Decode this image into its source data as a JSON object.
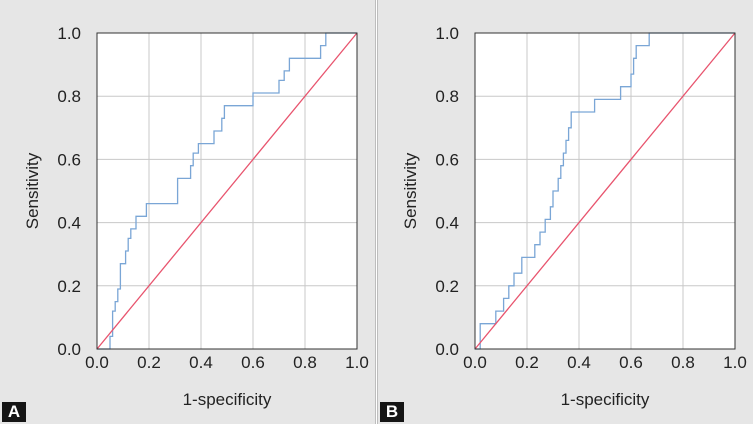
{
  "chart_data": [
    {
      "type": "line",
      "panel_label": "A",
      "xlabel": "1-specificity",
      "ylabel": "Sensitivity",
      "xlim": [
        0,
        1
      ],
      "ylim": [
        0,
        1
      ],
      "x_ticks": [
        "0.0",
        "0.2",
        "0.4",
        "0.6",
        "0.8",
        "1.0"
      ],
      "y_ticks": [
        "0.0",
        "0.2",
        "0.4",
        "0.6",
        "0.8",
        "1.0"
      ],
      "grid": true,
      "series": [
        {
          "color": "#7aa6d6",
          "step": true,
          "points": [
            [
              0,
              0
            ],
            [
              0.05,
              0
            ],
            [
              0.05,
              0.04
            ],
            [
              0.06,
              0.04
            ],
            [
              0.06,
              0.12
            ],
            [
              0.07,
              0.12
            ],
            [
              0.07,
              0.15
            ],
            [
              0.08,
              0.15
            ],
            [
              0.08,
              0.19
            ],
            [
              0.09,
              0.19
            ],
            [
              0.09,
              0.27
            ],
            [
              0.11,
              0.27
            ],
            [
              0.11,
              0.31
            ],
            [
              0.12,
              0.31
            ],
            [
              0.12,
              0.35
            ],
            [
              0.13,
              0.35
            ],
            [
              0.13,
              0.38
            ],
            [
              0.15,
              0.38
            ],
            [
              0.15,
              0.42
            ],
            [
              0.19,
              0.42
            ],
            [
              0.19,
              0.46
            ],
            [
              0.31,
              0.46
            ],
            [
              0.31,
              0.54
            ],
            [
              0.36,
              0.54
            ],
            [
              0.36,
              0.58
            ],
            [
              0.37,
              0.58
            ],
            [
              0.37,
              0.62
            ],
            [
              0.39,
              0.62
            ],
            [
              0.39,
              0.65
            ],
            [
              0.45,
              0.65
            ],
            [
              0.45,
              0.69
            ],
            [
              0.48,
              0.69
            ],
            [
              0.48,
              0.73
            ],
            [
              0.49,
              0.73
            ],
            [
              0.49,
              0.77
            ],
            [
              0.6,
              0.77
            ],
            [
              0.6,
              0.81
            ],
            [
              0.7,
              0.81
            ],
            [
              0.7,
              0.85
            ],
            [
              0.72,
              0.85
            ],
            [
              0.72,
              0.88
            ],
            [
              0.74,
              0.88
            ],
            [
              0.74,
              0.92
            ],
            [
              0.86,
              0.92
            ],
            [
              0.86,
              0.96
            ],
            [
              0.88,
              0.96
            ],
            [
              0.88,
              1.0
            ],
            [
              1,
              1.0
            ]
          ]
        },
        {
          "color": "#e8546e",
          "points": [
            [
              0,
              0
            ],
            [
              1,
              1
            ]
          ]
        }
      ]
    },
    {
      "type": "line",
      "panel_label": "B",
      "xlabel": "1-specificity",
      "ylabel": "Sensitivity",
      "xlim": [
        0,
        1
      ],
      "ylim": [
        0,
        1
      ],
      "x_ticks": [
        "0.0",
        "0.2",
        "0.4",
        "0.6",
        "0.8",
        "1.0"
      ],
      "y_ticks": [
        "0.0",
        "0.2",
        "0.4",
        "0.6",
        "0.8",
        "1.0"
      ],
      "grid": true,
      "series": [
        {
          "color": "#7aa6d6",
          "step": true,
          "points": [
            [
              0,
              0
            ],
            [
              0.02,
              0
            ],
            [
              0.02,
              0.08
            ],
            [
              0.08,
              0.08
            ],
            [
              0.08,
              0.12
            ],
            [
              0.11,
              0.12
            ],
            [
              0.11,
              0.16
            ],
            [
              0.13,
              0.16
            ],
            [
              0.13,
              0.2
            ],
            [
              0.15,
              0.2
            ],
            [
              0.15,
              0.24
            ],
            [
              0.18,
              0.24
            ],
            [
              0.18,
              0.29
            ],
            [
              0.23,
              0.29
            ],
            [
              0.23,
              0.33
            ],
            [
              0.25,
              0.33
            ],
            [
              0.25,
              0.37
            ],
            [
              0.27,
              0.37
            ],
            [
              0.27,
              0.41
            ],
            [
              0.29,
              0.41
            ],
            [
              0.29,
              0.45
            ],
            [
              0.3,
              0.45
            ],
            [
              0.3,
              0.5
            ],
            [
              0.32,
              0.5
            ],
            [
              0.32,
              0.54
            ],
            [
              0.33,
              0.54
            ],
            [
              0.33,
              0.58
            ],
            [
              0.34,
              0.58
            ],
            [
              0.34,
              0.62
            ],
            [
              0.35,
              0.62
            ],
            [
              0.35,
              0.66
            ],
            [
              0.36,
              0.66
            ],
            [
              0.36,
              0.7
            ],
            [
              0.37,
              0.7
            ],
            [
              0.37,
              0.75
            ],
            [
              0.46,
              0.75
            ],
            [
              0.46,
              0.79
            ],
            [
              0.56,
              0.79
            ],
            [
              0.56,
              0.83
            ],
            [
              0.6,
              0.83
            ],
            [
              0.6,
              0.87
            ],
            [
              0.61,
              0.87
            ],
            [
              0.61,
              0.92
            ],
            [
              0.62,
              0.92
            ],
            [
              0.62,
              0.96
            ],
            [
              0.67,
              0.96
            ],
            [
              0.67,
              1.0
            ],
            [
              1,
              1.0
            ]
          ]
        },
        {
          "color": "#e8546e",
          "points": [
            [
              0,
              0
            ],
            [
              1,
              1
            ]
          ]
        }
      ]
    }
  ]
}
